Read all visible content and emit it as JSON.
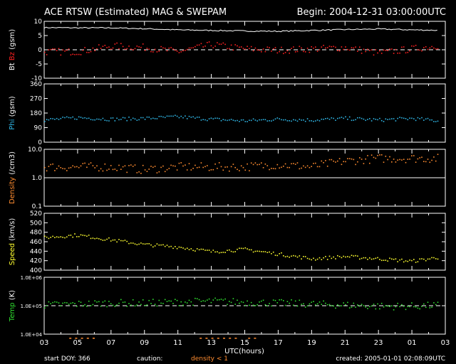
{
  "header": {
    "title": "ACE RTSW (Estimated) MAG & SWEPAM",
    "begin": "Begin: 2004-12-31 03:00:00UTC"
  },
  "footer": {
    "start_doy": "start DOY: 366",
    "caution": "caution:",
    "density_note": "density < 1",
    "created": "created: 2005-01-01 02:08:09UTC",
    "xlabel": "UTC(hours)"
  },
  "colors": {
    "bt": "#ffffff",
    "bz": "#ff2020",
    "phi": "#30b8e8",
    "density": "#ff8c30",
    "speed": "#ffff30",
    "temp": "#30e030",
    "axis": "#ffffff",
    "caution": "#ff8c30"
  },
  "chart_data": [
    {
      "type": "line",
      "name": "mag",
      "ylabel_parts": [
        "Bt",
        "Bz",
        "(gsm)"
      ],
      "ylim": [
        -10,
        10
      ],
      "yticks": [
        "10",
        "5",
        "0",
        "-5",
        "-10"
      ],
      "xticks": [
        "03",
        "05",
        "07",
        "09",
        "11",
        "13",
        "15",
        "17",
        "19",
        "21",
        "23",
        "01",
        "03"
      ],
      "x": [
        0,
        2,
        4,
        6,
        8,
        10,
        12,
        14,
        16,
        18,
        20,
        22,
        24
      ],
      "series": [
        {
          "values": [
            7.8,
            7.7,
            7.7,
            7.4,
            7.0,
            6.8,
            6.6,
            6.5,
            6.8,
            7.1,
            7.3,
            7.0,
            6.8
          ]
        },
        {
          "values": [
            -0.5,
            -0.5,
            1.5,
            1.0,
            -0.5,
            2.0,
            0.5,
            0.0,
            0.5,
            1.0,
            -1.0,
            0.5,
            2.0
          ]
        }
      ]
    },
    {
      "type": "scatter",
      "name": "phi",
      "ylabel_parts": [
        "Phi",
        "(gsm)"
      ],
      "ylim": [
        0,
        360
      ],
      "yticks": [
        "360",
        "270",
        "180",
        "90",
        "0"
      ],
      "x": [
        0,
        2,
        4,
        6,
        8,
        10,
        12,
        14,
        16,
        18,
        20,
        22,
        24
      ],
      "series": [
        {
          "values": [
            140,
            155,
            145,
            150,
            160,
            145,
            135,
            145,
            140,
            150,
            140,
            150,
            130
          ]
        }
      ]
    },
    {
      "type": "scatter",
      "name": "density",
      "ylabel_parts": [
        "Density",
        "(/cm3)"
      ],
      "ylim": [
        0.1,
        10
      ],
      "yscale": "log",
      "yticks": [
        "10.0",
        "1.0",
        "0.1"
      ],
      "x": [
        0,
        2,
        4,
        6,
        8,
        10,
        12,
        14,
        16,
        18,
        20,
        22,
        24
      ],
      "series": [
        {
          "values": [
            2.5,
            2.5,
            2.5,
            2.0,
            2.5,
            2.5,
            2.5,
            3.0,
            2.5,
            4.0,
            5.0,
            5.0,
            5.0
          ]
        }
      ]
    },
    {
      "type": "scatter",
      "name": "speed",
      "ylabel_parts": [
        "Speed",
        "(km/s)"
      ],
      "ylim": [
        400,
        520
      ],
      "yticks": [
        "520",
        "500",
        "480",
        "460",
        "440",
        "420",
        "400"
      ],
      "x": [
        0,
        2,
        4,
        6,
        8,
        10,
        12,
        14,
        16,
        18,
        20,
        22,
        24
      ],
      "series": [
        {
          "values": [
            470,
            475,
            465,
            455,
            450,
            440,
            445,
            435,
            425,
            430,
            425,
            420,
            430
          ]
        }
      ]
    },
    {
      "type": "scatter",
      "name": "temp",
      "ylabel_parts": [
        "Temp",
        "(K)"
      ],
      "ylim": [
        10000,
        1000000
      ],
      "yscale": "log",
      "yticks": [
        "1.0E+06",
        "1.0E+05",
        "1.0E+04"
      ],
      "x": [
        0,
        2,
        4,
        6,
        8,
        10,
        12,
        14,
        16,
        18,
        20,
        22,
        24
      ],
      "series": [
        {
          "values": [
            110000,
            120000,
            130000,
            130000,
            140000,
            150000,
            140000,
            130000,
            120000,
            110000,
            100000,
            100000,
            110000
          ]
        }
      ]
    }
  ]
}
